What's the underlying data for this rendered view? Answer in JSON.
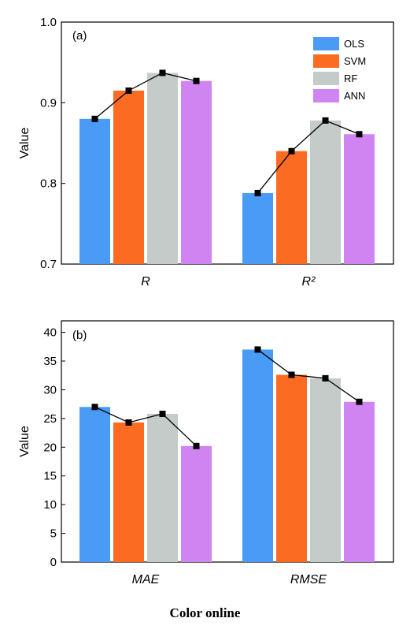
{
  "caption": "Color online",
  "legend": [
    {
      "label": "OLS",
      "color": "#4a9bf5"
    },
    {
      "label": "SVM",
      "color": "#fb6b22"
    },
    {
      "label": "RF",
      "color": "#c5cbc9"
    },
    {
      "label": "ANN",
      "color": "#cf84f2"
    }
  ],
  "chart_data": [
    {
      "type": "bar",
      "panel": "(a)",
      "ylabel": "Value",
      "ylim": [
        0.7,
        1.0
      ],
      "yticks": [
        "0.7",
        "0.8",
        "0.9",
        "1.0"
      ],
      "categories": [
        "R",
        "R²"
      ],
      "legend_position": "top-right",
      "series": [
        {
          "name": "OLS",
          "color": "#4a9bf5",
          "values": [
            0.88,
            0.788
          ]
        },
        {
          "name": "SVM",
          "color": "#fb6b22",
          "values": [
            0.915,
            0.84
          ]
        },
        {
          "name": "RF",
          "color": "#c5cbc9",
          "values": [
            0.937,
            0.878
          ]
        },
        {
          "name": "ANN",
          "color": "#cf84f2",
          "values": [
            0.927,
            0.861
          ]
        }
      ],
      "line_overlay": true
    },
    {
      "type": "bar",
      "panel": "(b)",
      "ylabel": "Value",
      "ylim": [
        0,
        42
      ],
      "yticks": [
        "0",
        "5",
        "10",
        "15",
        "20",
        "25",
        "30",
        "35",
        "40"
      ],
      "categories": [
        "MAE",
        "RMSE"
      ],
      "series": [
        {
          "name": "OLS",
          "color": "#4a9bf5",
          "values": [
            27.0,
            37.0
          ]
        },
        {
          "name": "SVM",
          "color": "#fb6b22",
          "values": [
            24.3,
            32.6
          ]
        },
        {
          "name": "RF",
          "color": "#c5cbc9",
          "values": [
            25.8,
            32.0
          ]
        },
        {
          "name": "ANN",
          "color": "#cf84f2",
          "values": [
            20.2,
            27.9
          ]
        }
      ],
      "line_overlay": true
    }
  ]
}
